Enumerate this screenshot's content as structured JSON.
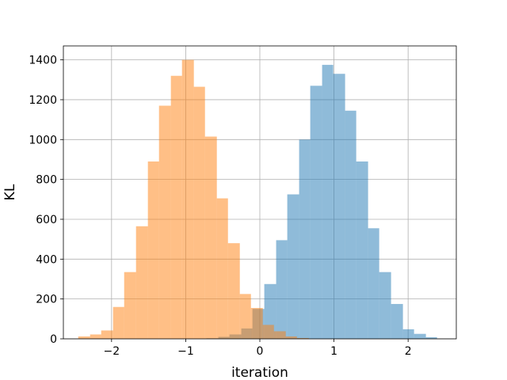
{
  "chart_data": {
    "type": "bar",
    "xlabel": "iteration",
    "ylabel": "KL",
    "xlim": [
      -2.65,
      2.65
    ],
    "ylim": [
      0,
      1470
    ],
    "grid": true,
    "xticks": [
      -2,
      -1,
      0,
      1,
      2
    ],
    "xtick_labels": [
      "−2",
      "−1",
      "0",
      "1",
      "2"
    ],
    "yticks": [
      0,
      200,
      400,
      600,
      800,
      1000,
      1200,
      1400
    ],
    "ytick_labels": [
      "0",
      "200",
      "400",
      "600",
      "800",
      "1000",
      "1200",
      "1400"
    ],
    "series": [
      {
        "color": "#1f77b4",
        "alpha": 0.5,
        "bins": [
          [
            -0.72,
            -0.56,
            3
          ],
          [
            -0.56,
            -0.41,
            10
          ],
          [
            -0.41,
            -0.25,
            22
          ],
          [
            -0.25,
            -0.1,
            52
          ],
          [
            -0.1,
            0.06,
            150
          ],
          [
            0.06,
            0.22,
            275
          ],
          [
            0.22,
            0.37,
            495
          ],
          [
            0.37,
            0.53,
            725
          ],
          [
            0.53,
            0.68,
            1000
          ],
          [
            0.68,
            0.84,
            1270
          ],
          [
            0.84,
            0.99,
            1375
          ],
          [
            0.99,
            1.15,
            1330
          ],
          [
            1.15,
            1.3,
            1145
          ],
          [
            1.3,
            1.46,
            890
          ],
          [
            1.46,
            1.61,
            555
          ],
          [
            1.61,
            1.77,
            335
          ],
          [
            1.77,
            1.93,
            175
          ],
          [
            1.93,
            2.08,
            48
          ],
          [
            2.08,
            2.24,
            25
          ],
          [
            2.24,
            2.39,
            8
          ]
        ]
      },
      {
        "color": "#ff7f0e",
        "alpha": 0.5,
        "bins": [
          [
            -2.45,
            -2.29,
            12
          ],
          [
            -2.29,
            -2.14,
            22
          ],
          [
            -2.14,
            -1.98,
            42
          ],
          [
            -1.98,
            -1.83,
            160
          ],
          [
            -1.83,
            -1.67,
            335
          ],
          [
            -1.67,
            -1.51,
            565
          ],
          [
            -1.51,
            -1.36,
            890
          ],
          [
            -1.36,
            -1.2,
            1170
          ],
          [
            -1.2,
            -1.05,
            1320
          ],
          [
            -1.05,
            -0.89,
            1400
          ],
          [
            -0.89,
            -0.74,
            1265
          ],
          [
            -0.74,
            -0.58,
            1015
          ],
          [
            -0.58,
            -0.43,
            705
          ],
          [
            -0.43,
            -0.27,
            480
          ],
          [
            -0.27,
            -0.12,
            225
          ],
          [
            -0.12,
            0.04,
            155
          ],
          [
            0.04,
            0.19,
            70
          ],
          [
            0.19,
            0.35,
            38
          ],
          [
            0.35,
            0.5,
            12
          ],
          [
            0.5,
            0.66,
            4
          ]
        ]
      }
    ]
  }
}
